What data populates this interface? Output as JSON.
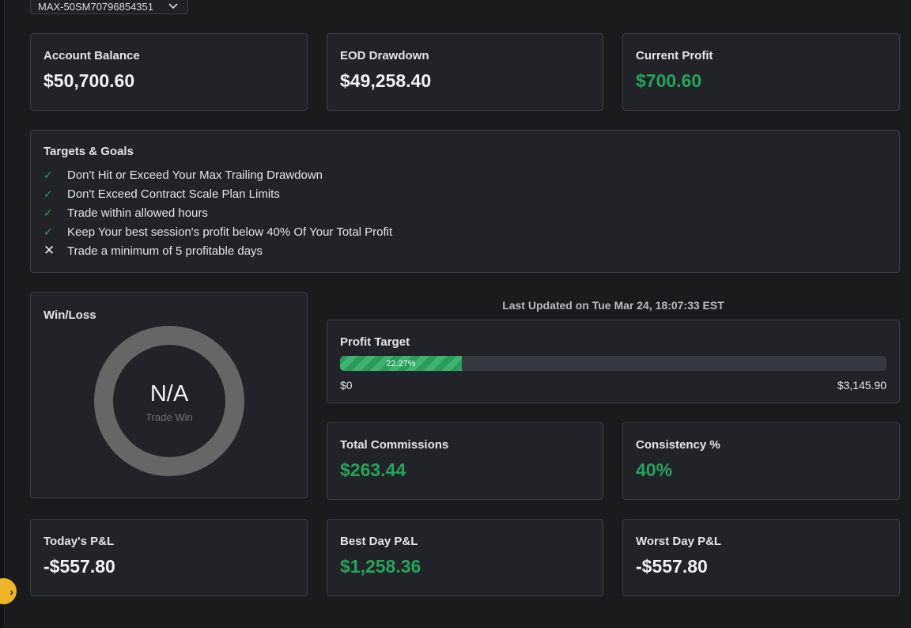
{
  "account_selector": {
    "value": "MAX-50SM70796854351"
  },
  "summary": {
    "account_balance": {
      "label": "Account Balance",
      "value": "$50,700.60"
    },
    "eod_drawdown": {
      "label": "EOD Drawdown",
      "value": "$49,258.40"
    },
    "current_profit": {
      "label": "Current Profit",
      "value": "$700.60"
    }
  },
  "targets": {
    "title": "Targets & Goals",
    "items": [
      {
        "text": "Don't Hit or Exceed Your Max Trailing Drawdown",
        "met": true,
        "icon": "check-icon"
      },
      {
        "text": "Don't Exceed Contract Scale Plan Limits",
        "met": true,
        "icon": "check-icon"
      },
      {
        "text": "Trade within allowed hours",
        "met": true,
        "icon": "check-icon"
      },
      {
        "text": "Keep Your best session's profit below 40% Of Your Total Profit",
        "met": true,
        "icon": "check-icon"
      },
      {
        "text": "Trade a minimum of 5 profitable days",
        "met": false,
        "icon": "x-icon"
      }
    ]
  },
  "win_loss": {
    "label": "Win/Loss",
    "center_value": "N/A",
    "center_sub": "Trade Win",
    "ring_color": "#666666"
  },
  "last_updated": "Last Updated on Tue Mar 24, 18:07:33 EST",
  "profit_target": {
    "label": "Profit Target",
    "percent": 22.27,
    "percent_label": "22.27%",
    "min_label": "$0",
    "max_label": "$3,145.90"
  },
  "total_commissions": {
    "label": "Total Commissions",
    "value": "$263.44"
  },
  "consistency": {
    "label": "Consistency %",
    "value": "40%"
  },
  "todays_pnl": {
    "label": "Today's P&L",
    "value": "-$557.80"
  },
  "best_day_pnl": {
    "label": "Best Day P&L",
    "value": "$1,258.36"
  },
  "worst_day_pnl": {
    "label": "Worst Day P&L",
    "value": "-$557.80"
  },
  "colors": {
    "positive": "#26a45a",
    "background": "#1a1b1d",
    "card": "#212328",
    "accent": "#f0b429"
  }
}
